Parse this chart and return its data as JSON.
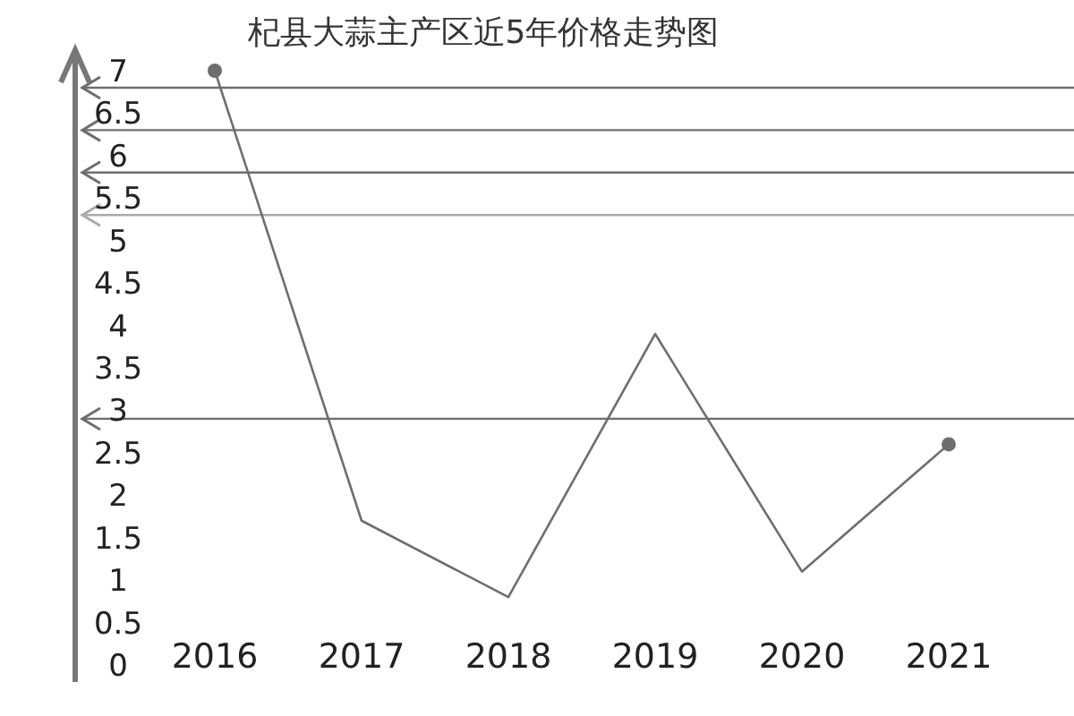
{
  "chart_data": {
    "type": "line",
    "title": "杞县大蒜主产区近5年价格走势图",
    "categories": [
      "2016",
      "2017",
      "2018",
      "2019",
      "2020",
      "2021"
    ],
    "series": [
      {
        "color": "#6e6e6e",
        "values": [
          7.0,
          1.7,
          0.8,
          3.9,
          1.1,
          2.6
        ]
      }
    ],
    "ylim": [
      -0.2,
      7.2
    ],
    "yticks": [
      0,
      0.5,
      1,
      1.5,
      2,
      2.5,
      3,
      3.5,
      4,
      4.5,
      5,
      5.5,
      6,
      6.5,
      7
    ],
    "line_style": "solid",
    "grid": false,
    "ref_lines": [
      {
        "axis": "y",
        "value": 6.8,
        "color": "#6e6e6e"
      },
      {
        "axis": "y",
        "value": 6.3,
        "color": "#6e6e6e"
      },
      {
        "axis": "y",
        "value": 5.8,
        "color": "#6e6e6e"
      },
      {
        "axis": "y",
        "value": 5.3,
        "color": "#aaaaaa"
      },
      {
        "axis": "y",
        "value": 2.9,
        "color": "#6e6e6e"
      }
    ]
  }
}
